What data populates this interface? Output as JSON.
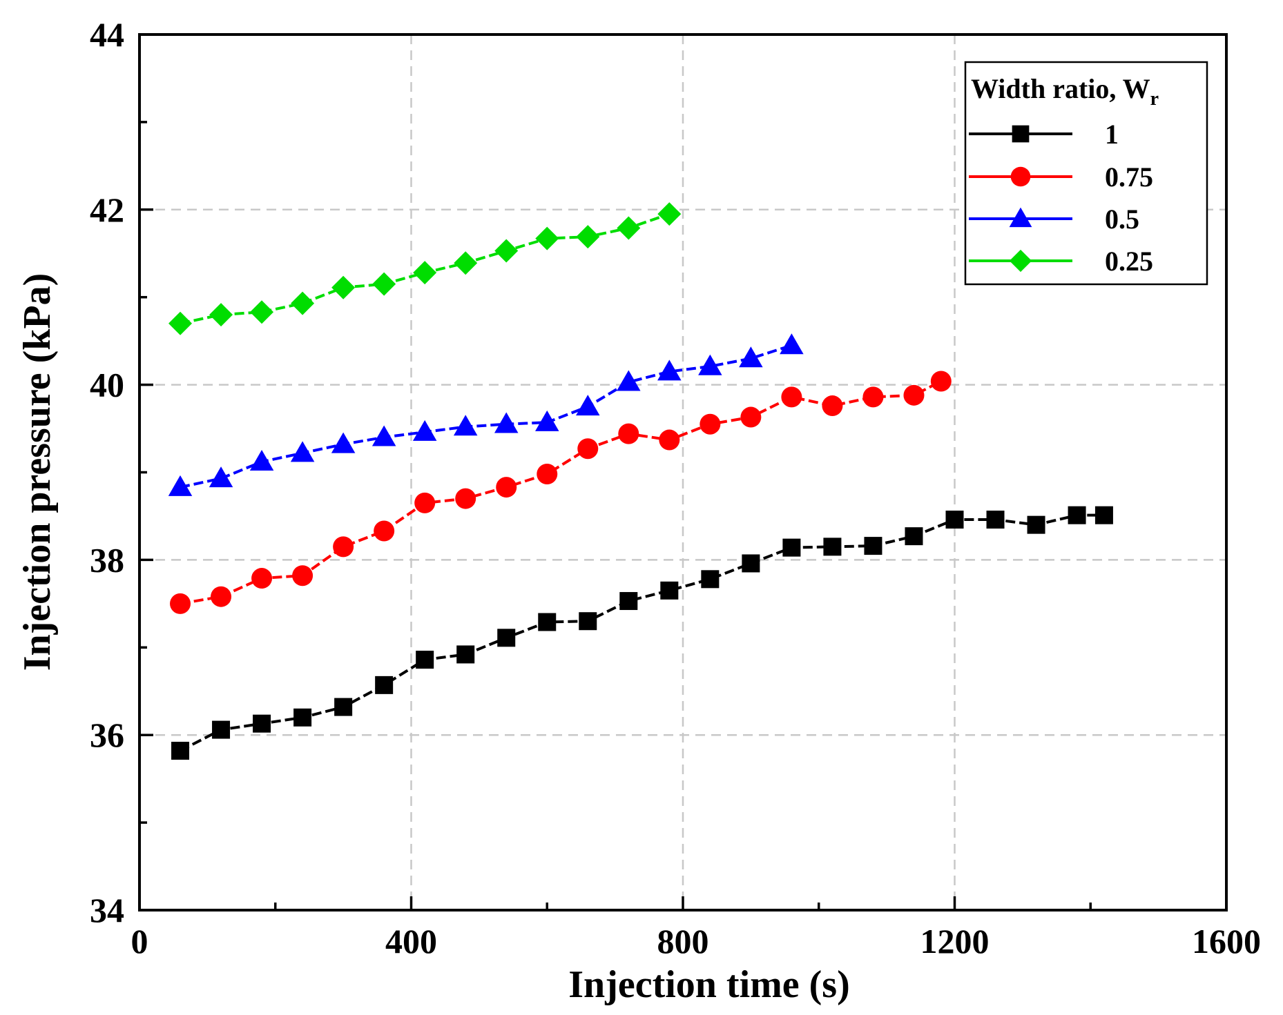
{
  "chart_data": {
    "type": "line",
    "title": "",
    "xlabel": "Injection time (s)",
    "ylabel": "Injection pressure (kPa)",
    "xlim": [
      0,
      1600
    ],
    "ylim": [
      34,
      44
    ],
    "xticks": [
      0,
      400,
      800,
      1200,
      1600
    ],
    "yticks": [
      34,
      36,
      38,
      40,
      42,
      44
    ],
    "grid": true,
    "legend": {
      "title_main": "Width ratio, W",
      "title_sub": "r",
      "placement": "top-right"
    },
    "series": [
      {
        "name": "1",
        "color": "#000000",
        "marker": "square",
        "x": [
          60,
          120,
          180,
          240,
          300,
          360,
          420,
          480,
          540,
          600,
          660,
          720,
          780,
          840,
          900,
          960,
          1020,
          1080,
          1140,
          1200,
          1260,
          1320,
          1380,
          1420
        ],
        "values": [
          35.82,
          36.06,
          36.13,
          36.2,
          36.32,
          36.57,
          36.86,
          36.92,
          37.11,
          37.29,
          37.3,
          37.53,
          37.65,
          37.78,
          37.96,
          38.14,
          38.15,
          38.16,
          38.27,
          38.46,
          38.46,
          38.4,
          38.51,
          38.51
        ]
      },
      {
        "name": "0.75",
        "color": "#ff0000",
        "marker": "circle",
        "x": [
          60,
          120,
          180,
          240,
          300,
          360,
          420,
          480,
          540,
          600,
          660,
          720,
          780,
          840,
          900,
          960,
          1020,
          1080,
          1140,
          1180
        ],
        "values": [
          37.5,
          37.58,
          37.79,
          37.82,
          38.15,
          38.33,
          38.65,
          38.7,
          38.83,
          38.98,
          39.27,
          39.44,
          39.37,
          39.55,
          39.63,
          39.86,
          39.76,
          39.86,
          39.88,
          40.04
        ]
      },
      {
        "name": "0.5",
        "color": "#0000ff",
        "marker": "triangle",
        "x": [
          60,
          120,
          180,
          240,
          300,
          360,
          420,
          480,
          540,
          600,
          660,
          720,
          780,
          840,
          900,
          960
        ],
        "values": [
          38.83,
          38.93,
          39.12,
          39.22,
          39.32,
          39.4,
          39.46,
          39.52,
          39.55,
          39.57,
          39.75,
          40.03,
          40.15,
          40.21,
          40.3,
          40.45
        ]
      },
      {
        "name": "0.25",
        "color": "#00dd00",
        "marker": "diamond",
        "x": [
          60,
          120,
          180,
          240,
          300,
          360,
          420,
          480,
          540,
          600,
          660,
          720,
          780
        ],
        "values": [
          40.7,
          40.8,
          40.83,
          40.93,
          41.11,
          41.15,
          41.28,
          41.39,
          41.53,
          41.67,
          41.69,
          41.79,
          41.95
        ]
      }
    ]
  }
}
